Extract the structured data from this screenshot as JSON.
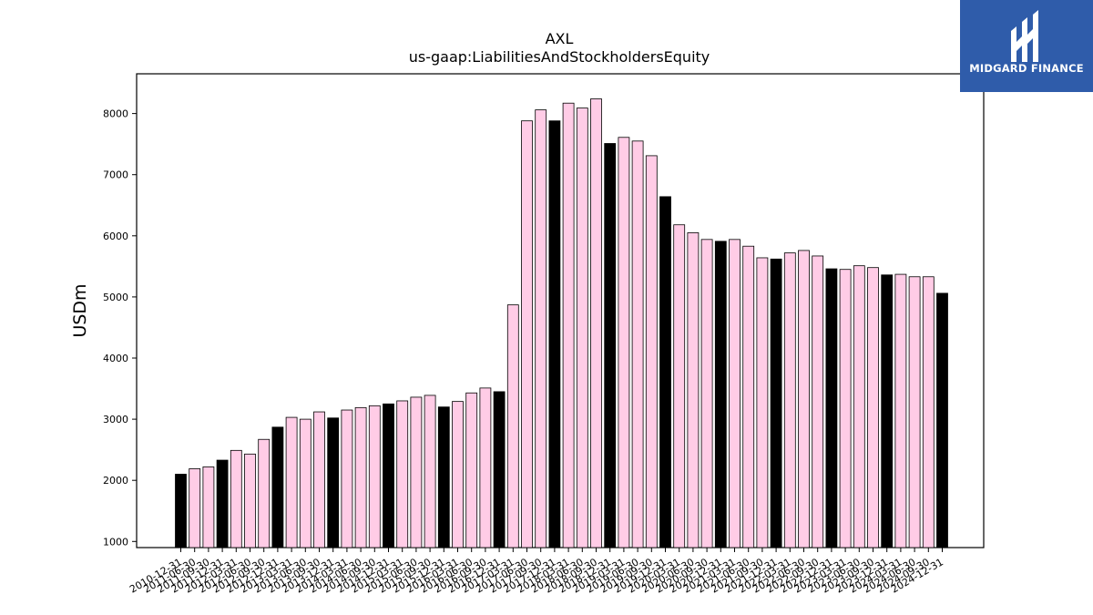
{
  "brand": {
    "name": "MIDGARD FINANCE",
    "color": "#2f5caa"
  },
  "colors": {
    "year_end_bar": "#000000",
    "quarter_bar": "#ffcce6",
    "bar_edge": "#000000"
  },
  "chart_data": {
    "type": "bar",
    "title": "AXL",
    "subtitle": "us-gaap:LiabilitiesAndStockholdersEquity",
    "xlabel": "",
    "ylabel": "USDm",
    "ylim": [
      900,
      8650
    ],
    "yticks": [
      1000,
      2000,
      3000,
      4000,
      5000,
      6000,
      7000,
      8000
    ],
    "grid": false,
    "categories": [
      "2010-12-31",
      "2011-06-30",
      "2011-09-30",
      "2011-12-31",
      "2012-03-31",
      "2012-06-30",
      "2012-09-30",
      "2012-12-31",
      "2013-03-31",
      "2013-06-30",
      "2013-09-30",
      "2013-12-31",
      "2014-03-31",
      "2014-06-30",
      "2014-09-30",
      "2014-12-31",
      "2015-03-31",
      "2015-06-30",
      "2015-09-30",
      "2015-12-31",
      "2016-03-31",
      "2016-06-30",
      "2016-09-30",
      "2016-12-31",
      "2017-03-31",
      "2017-06-30",
      "2017-09-30",
      "2017-12-31",
      "2018-03-31",
      "2018-06-30",
      "2018-09-30",
      "2018-12-31",
      "2019-03-31",
      "2019-06-30",
      "2019-09-30",
      "2019-12-31",
      "2020-03-31",
      "2020-06-30",
      "2020-09-30",
      "2020-12-31",
      "2021-03-31",
      "2021-06-30",
      "2021-09-30",
      "2021-12-31",
      "2022-03-31",
      "2022-06-30",
      "2022-09-30",
      "2022-12-31",
      "2023-03-31",
      "2023-06-30",
      "2023-09-30",
      "2023-12-31",
      "2024-03-31",
      "2024-06-30",
      "2024-09-30",
      "2024-12-31"
    ],
    "values": [
      2100,
      2190,
      2220,
      2330,
      2490,
      2430,
      2670,
      2870,
      3030,
      3000,
      3120,
      3020,
      3150,
      3190,
      3220,
      3250,
      3300,
      3360,
      3390,
      3200,
      3290,
      3430,
      3510,
      3450,
      4870,
      7880,
      8060,
      7880,
      8170,
      8090,
      8240,
      7510,
      7610,
      7550,
      7310,
      6640,
      6180,
      6050,
      5940,
      5910,
      5940,
      5830,
      5640,
      5620,
      5720,
      5760,
      5670,
      5460,
      5450,
      5510,
      5480,
      5360,
      5370,
      5330,
      5330,
      5060
    ],
    "legend": "none"
  }
}
